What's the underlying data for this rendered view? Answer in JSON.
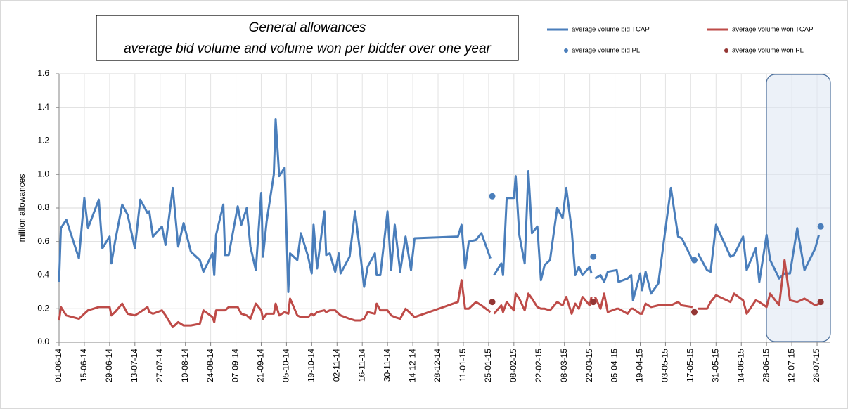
{
  "chart_data": {
    "type": "line",
    "title": "General allowances",
    "subtitle": "average bid volume and volume won per bidder over one year",
    "y_label": "million allowances",
    "ylim": [
      0,
      1.6
    ],
    "yticks": [
      {
        "value": 0,
        "label": "0.0"
      },
      0.2,
      0.4,
      0.6,
      0.8,
      {
        "value": 1,
        "label": "1.0"
      },
      1.2,
      1.4,
      1.6
    ],
    "xlim": [
      "01-06-14",
      "02-08-15"
    ],
    "xticks": [
      "01-06-14",
      "15-06-14",
      "29-06-14",
      "13-07-14",
      "27-07-14",
      "10-08-14",
      "24-08-14",
      "07-09-14",
      "21-09-14",
      "05-10-14",
      "19-10-14",
      "02-11-14",
      "16-11-14",
      "30-11-14",
      "14-12-14",
      "28-12-14",
      "11-01-15",
      "25-01-15",
      "08-02-15",
      "22-02-15",
      "08-03-15",
      "22-03-15",
      "05-04-15",
      "19-04-15",
      "03-05-15",
      "17-05-15",
      "31-05-15",
      "14-06-15",
      "28-06-15",
      "12-07-15",
      "26-07-15"
    ],
    "grid": true,
    "x": [
      "01-06-14",
      "02-06-14",
      "05-06-14",
      "12-06-14",
      "15-06-14",
      "17-06-14",
      "23-06-14",
      "25-06-14",
      "29-06-14",
      "30-06-14",
      "02-07-14",
      "06-07-14",
      "09-07-14",
      "13-07-14",
      "16-07-14",
      "20-07-14",
      "21-07-14",
      "23-07-14",
      "28-07-14",
      "30-07-14",
      "03-08-14",
      "06-08-14",
      "09-08-14",
      "13-08-14",
      "18-08-14",
      "20-08-14",
      "25-08-14",
      "26-08-14",
      "27-08-14",
      "31-08-14",
      "01-09-14",
      "03-09-14",
      "08-09-14",
      "10-09-14",
      "13-09-14",
      "15-09-14",
      "18-09-14",
      "21-09-14",
      "22-09-14",
      "24-09-14",
      "28-09-14",
      "29-09-14",
      "01-10-14",
      "04-10-14",
      "06-10-14",
      "07-10-14",
      "11-10-14",
      "13-10-14",
      "17-10-14",
      "19-10-14",
      "20-10-14",
      "22-10-14",
      "26-10-14",
      "27-10-14",
      "29-10-14",
      "01-11-14",
      "03-11-14",
      "04-11-14",
      "09-11-14",
      "12-11-14",
      "15-11-14",
      "17-11-14",
      "19-11-14",
      "23-11-14",
      "24-11-14",
      "26-11-14",
      "30-11-14",
      "02-12-14",
      "04-12-14",
      "07-12-14",
      "10-12-14",
      "13-12-14",
      "15-12-14",
      "08-01-15",
      "10-01-15",
      "12-01-15",
      "14-01-15",
      "18-01-15",
      "21-01-15",
      "26-01-15",
      "27-01-15",
      "28-01-15",
      "01-02-15",
      "02-02-15",
      "04-02-15",
      "08-02-15",
      "09-02-15",
      "11-02-15",
      "14-02-15",
      "16-02-15",
      "18-02-15",
      "21-02-15",
      "23-02-15",
      "25-02-15",
      "28-02-15",
      "04-03-15",
      "07-03-15",
      "09-03-15",
      "12-03-15",
      "14-03-15",
      "16-03-15",
      "18-03-15",
      "22-03-15",
      "23-03-15",
      "24-03-15",
      "25-03-15",
      "28-03-15",
      "30-03-15",
      "01-04-15",
      "06-04-15",
      "07-04-15",
      "12-04-15",
      "14-04-15",
      "15-04-15",
      "19-04-15",
      "20-04-15",
      "22-04-15",
      "25-04-15",
      "29-04-15",
      "06-05-15",
      "10-05-15",
      "12-05-15",
      "18-05-15",
      "19-05-15",
      "21-05-15",
      "26-05-15",
      "28-05-15",
      "31-05-15",
      "08-06-15",
      "10-06-15",
      "15-06-15",
      "17-06-15",
      "22-06-15",
      "24-06-15",
      "28-06-15",
      "30-06-15",
      "05-07-15",
      "08-07-15",
      "11-07-15",
      "15-07-15",
      "19-07-15",
      "25-07-15",
      "27-07-15"
    ],
    "series": [
      {
        "name": "average volume bid  TCAP",
        "color": "#4a7ebb",
        "style": "line",
        "values": [
          0.36,
          0.68,
          0.73,
          0.5,
          0.86,
          0.68,
          0.85,
          0.56,
          0.63,
          0.47,
          0.6,
          0.82,
          0.76,
          0.56,
          0.85,
          0.77,
          0.78,
          0.63,
          0.69,
          0.58,
          0.92,
          0.57,
          0.71,
          0.54,
          0.49,
          0.42,
          0.53,
          0.4,
          0.64,
          0.82,
          0.52,
          0.52,
          0.81,
          0.7,
          0.8,
          0.57,
          0.43,
          0.89,
          0.51,
          0.72,
          1.0,
          1.33,
          0.99,
          1.04,
          0.3,
          0.53,
          0.49,
          0.65,
          0.51,
          0.41,
          0.7,
          0.44,
          0.78,
          0.52,
          0.53,
          0.42,
          0.53,
          0.41,
          0.51,
          0.78,
          0.52,
          0.33,
          0.45,
          0.53,
          0.4,
          0.4,
          0.78,
          0.43,
          0.7,
          0.42,
          0.63,
          0.43,
          0.62,
          0.63,
          0.7,
          0.44,
          0.6,
          0.61,
          0.65,
          0.5,
          null,
          0.4,
          0.47,
          0.4,
          0.86,
          0.86,
          0.99,
          0.64,
          0.47,
          1.02,
          0.65,
          0.69,
          0.37,
          0.46,
          0.49,
          0.8,
          0.74,
          0.92,
          0.67,
          0.4,
          0.45,
          0.4,
          0.45,
          0.41,
          null,
          0.38,
          0.4,
          0.36,
          0.42,
          0.43,
          0.36,
          0.38,
          0.4,
          0.25,
          0.41,
          0.31,
          0.42,
          0.29,
          0.35,
          0.92,
          0.63,
          0.62,
          0.49,
          null,
          0.53,
          0.43,
          0.42,
          0.7,
          0.51,
          0.52,
          0.63,
          0.43,
          0.56,
          0.36,
          0.64,
          0.49,
          0.38,
          0.41,
          0.41,
          0.68,
          0.43,
          0.56,
          0.64
        ]
      },
      {
        "name": "average volume won  TCAP",
        "color": "#be4b48",
        "style": "line",
        "values": [
          0.13,
          0.21,
          0.16,
          0.14,
          0.17,
          0.19,
          0.21,
          0.21,
          0.21,
          0.16,
          0.18,
          0.23,
          0.17,
          0.16,
          0.18,
          0.21,
          0.18,
          0.17,
          0.19,
          0.16,
          0.09,
          0.12,
          0.1,
          0.1,
          0.11,
          0.19,
          0.15,
          0.12,
          0.19,
          0.19,
          0.19,
          0.21,
          0.21,
          0.17,
          0.16,
          0.14,
          0.23,
          0.19,
          0.14,
          0.17,
          0.17,
          0.23,
          0.16,
          0.18,
          0.17,
          0.26,
          0.16,
          0.15,
          0.15,
          0.17,
          0.16,
          0.18,
          0.19,
          0.18,
          0.19,
          0.19,
          0.17,
          0.16,
          0.14,
          0.13,
          0.13,
          0.14,
          0.18,
          0.17,
          0.23,
          0.19,
          0.19,
          0.16,
          0.15,
          0.14,
          0.2,
          0.17,
          0.15,
          0.24,
          0.37,
          0.2,
          0.2,
          0.24,
          0.22,
          0.18,
          null,
          0.17,
          0.22,
          0.18,
          0.24,
          0.19,
          0.29,
          0.26,
          0.19,
          0.29,
          0.26,
          0.21,
          0.2,
          0.2,
          0.19,
          0.24,
          0.22,
          0.27,
          0.17,
          0.23,
          0.2,
          0.27,
          0.22,
          0.27,
          null,
          0.27,
          0.2,
          0.29,
          0.18,
          0.2,
          0.2,
          0.17,
          0.2,
          0.2,
          0.17,
          0.17,
          0.23,
          0.21,
          0.22,
          0.22,
          0.24,
          0.22,
          0.21,
          null,
          0.2,
          0.2,
          0.24,
          0.28,
          0.24,
          0.29,
          0.25,
          0.17,
          0.25,
          0.24,
          0.21,
          0.29,
          0.22,
          0.49,
          0.25,
          0.24,
          0.26,
          0.22,
          0.23
        ]
      },
      {
        "name": "average volume bid  PL",
        "color": "#4a7ebb",
        "style": "scatter",
        "x": [
          "27-01-15",
          "24-03-15",
          "19-05-15",
          "28-07-15"
        ],
        "values": [
          0.87,
          0.51,
          0.49,
          0.69
        ]
      },
      {
        "name": "average volume won  PL",
        "color": "#943634",
        "style": "scatter",
        "x": [
          "27-01-15",
          "24-03-15",
          "19-05-15",
          "28-07-15"
        ],
        "values": [
          0.24,
          0.24,
          0.18,
          0.24
        ]
      }
    ]
  }
}
